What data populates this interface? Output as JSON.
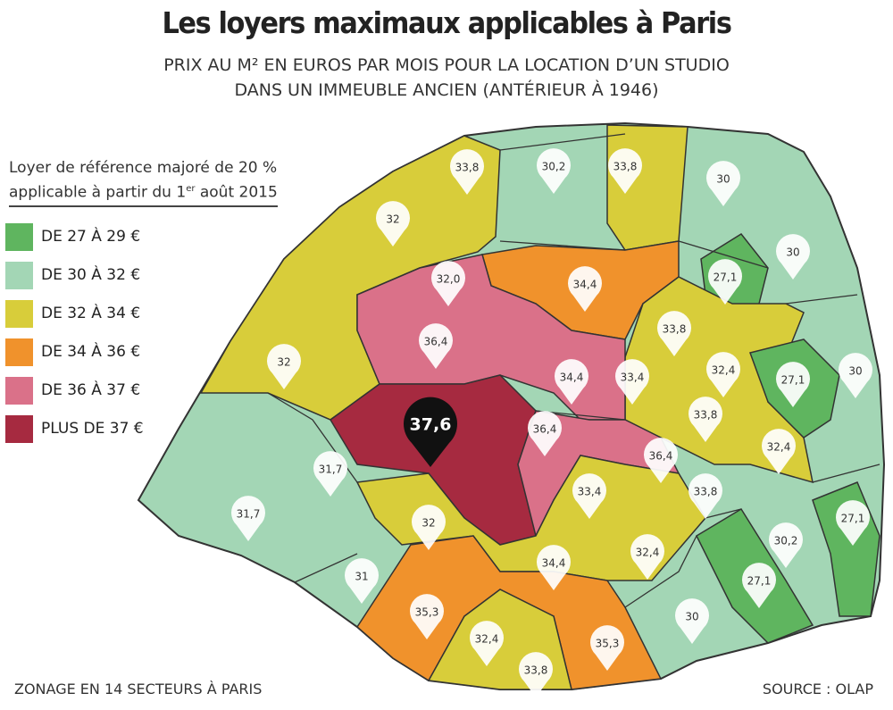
{
  "header": {
    "title": "Les loyers maximaux applicables à Paris",
    "subtitle": [
      "PRIX AU M² EN EUROS PAR MOIS POUR LA LOCATION D’UN STUDIO",
      "DANS UN IMMEUBLE ANCIEN (ANTÉRIEUR À 1946)"
    ]
  },
  "legend": {
    "heading": {
      "line1": "Loyer de référence majoré de 20 %",
      "line2_before": "applicable à partir du 1",
      "line2_sup": "er",
      "line2_after": " août 2015"
    },
    "items": [
      {
        "label": "DE 27 À 29 €",
        "color": "#5fb55f"
      },
      {
        "label": "DE 30 À 32 €",
        "color": "#a3d6b5"
      },
      {
        "label": "DE 32 À 34 €",
        "color": "#d8cd3a"
      },
      {
        "label": "DE 34 À 36 €",
        "color": "#f0922c"
      },
      {
        "label": "DE 36 À 37 €",
        "color": "#da7189"
      },
      {
        "label": "PLUS DE 37 €",
        "color": "#a62a40"
      }
    ]
  },
  "pins": [
    {
      "label": "33,8"
    },
    {
      "label": "30,2"
    },
    {
      "label": "33,8"
    },
    {
      "label": "30"
    },
    {
      "label": "32"
    },
    {
      "label": "30"
    },
    {
      "label": "32,0"
    },
    {
      "label": "34,4"
    },
    {
      "label": "27,1"
    },
    {
      "label": "36,4"
    },
    {
      "label": "33,8"
    },
    {
      "label": "32"
    },
    {
      "label": "34,4"
    },
    {
      "label": "33,4"
    },
    {
      "label": "32,4"
    },
    {
      "label": "27,1"
    },
    {
      "label": "30"
    },
    {
      "label": "37,6"
    },
    {
      "label": "36,4"
    },
    {
      "label": "33,8"
    },
    {
      "label": "36,4"
    },
    {
      "label": "32,4"
    },
    {
      "label": "31,7"
    },
    {
      "label": "33,4"
    },
    {
      "label": "33,8"
    },
    {
      "label": "31,7"
    },
    {
      "label": "32"
    },
    {
      "label": "27,1"
    },
    {
      "label": "30,2"
    },
    {
      "label": "34,4"
    },
    {
      "label": "32,4"
    },
    {
      "label": "31"
    },
    {
      "label": "27,1"
    },
    {
      "label": "35,3"
    },
    {
      "label": "30"
    },
    {
      "label": "32,4"
    },
    {
      "label": "35,3"
    },
    {
      "label": "33,8"
    }
  ],
  "footer": {
    "left": "ZONAGE EN 14 SECTEURS À PARIS",
    "right": "SOURCE : OLAP"
  }
}
